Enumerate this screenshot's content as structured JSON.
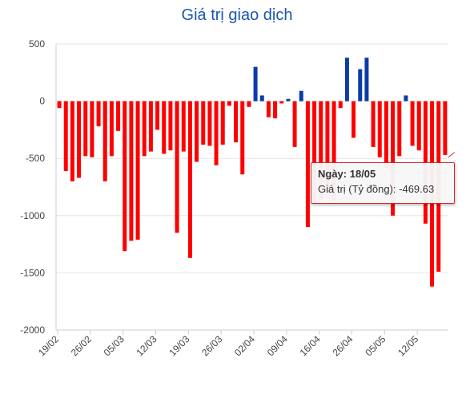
{
  "chart_data": {
    "type": "bar",
    "title": "Giá trị giao dịch",
    "xlabel": "",
    "ylabel": "",
    "ylim": [
      -2000,
      500
    ],
    "yticks": [
      500,
      0,
      -500,
      -1000,
      -1500,
      -2000
    ],
    "ytick_labels": [
      "500",
      "0",
      "-500",
      "-1000",
      "-1500",
      "-2000"
    ],
    "xtick_labels": [
      {
        "label": "19/02",
        "index": 0
      },
      {
        "label": "26/02",
        "index": 5
      },
      {
        "label": "05/03",
        "index": 10
      },
      {
        "label": "12/03",
        "index": 15
      },
      {
        "label": "19/03",
        "index": 20
      },
      {
        "label": "26/03",
        "index": 25
      },
      {
        "label": "02/04",
        "index": 30
      },
      {
        "label": "09/04",
        "index": 35
      },
      {
        "label": "16/04",
        "index": 40
      },
      {
        "label": "26/04",
        "index": 45
      },
      {
        "label": "05/05",
        "index": 50
      },
      {
        "label": "12/05",
        "index": 55
      }
    ],
    "values": [
      -60,
      -610,
      -700,
      -670,
      -480,
      -490,
      -220,
      -700,
      -480,
      -260,
      -1310,
      -1220,
      -1210,
      -480,
      -440,
      -250,
      -460,
      -430,
      -1150,
      -440,
      -1370,
      -530,
      -380,
      -390,
      -560,
      -380,
      -40,
      -360,
      -640,
      -50,
      300,
      50,
      -140,
      -150,
      -20,
      20,
      -400,
      90,
      -1100,
      -890,
      -860,
      -810,
      -870,
      -60,
      380,
      -320,
      280,
      380,
      -400,
      -490,
      -580,
      -1000,
      -480,
      50,
      -390,
      -430,
      -1070,
      -1620,
      -1490,
      -470
    ],
    "colors": {
      "positive": "#0a3ca8",
      "negative": "#ff0000",
      "axis": "#c8cfdb",
      "grid": "#e6e6e6",
      "label": "#444444"
    },
    "grid": true,
    "tooltip": {
      "date_label": "Ngày: 18/05",
      "value_label": "Giá trị (Tỷ đồng): -469.63",
      "border_color": "#d9232a"
    }
  }
}
